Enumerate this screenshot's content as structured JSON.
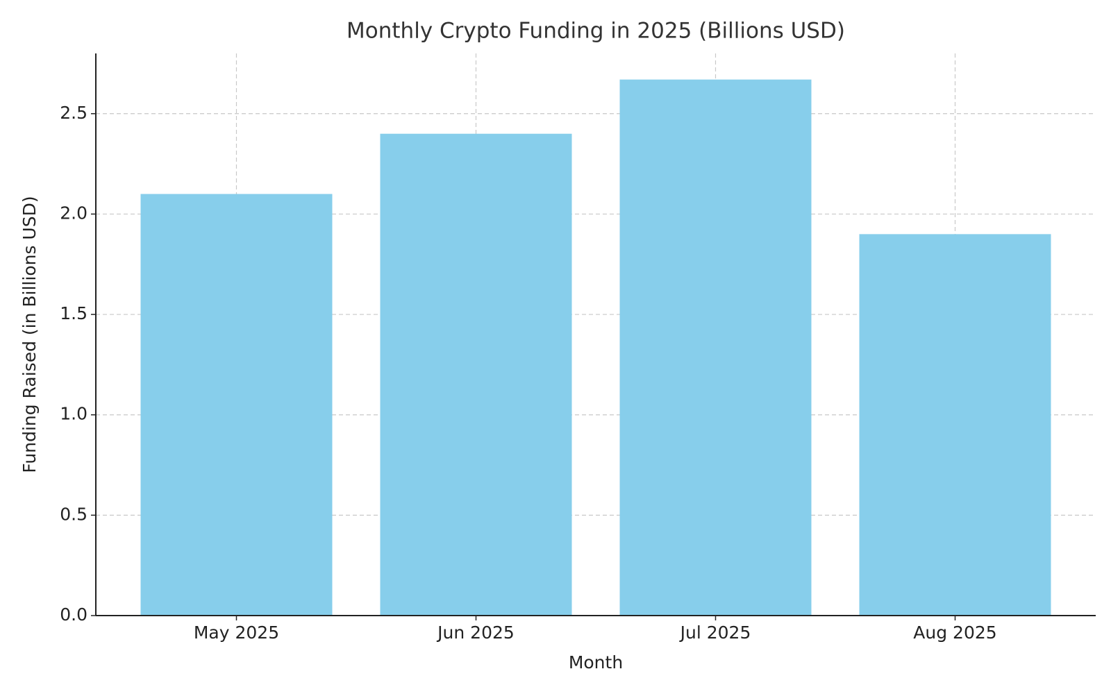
{
  "chart_data": {
    "type": "bar",
    "title": "Monthly Crypto Funding in 2025 (Billions USD)",
    "x_label": "Month",
    "y_label": "Funding Raised (in Billions USD)",
    "categories": [
      "May 2025",
      "Jun 2025",
      "Jul 2025",
      "Aug 2025"
    ],
    "values": [
      2.1,
      2.4,
      2.67,
      1.9
    ],
    "color": "#87ceeb",
    "ylim": [
      0,
      2.8
    ],
    "yticks": [
      {
        "value": 0,
        "label": "0.0"
      },
      0.5,
      {
        "value": 1,
        "label": "1.0"
      },
      1.5,
      {
        "value": 2,
        "label": "2.0"
      },
      2.5
    ],
    "grid": true
  }
}
